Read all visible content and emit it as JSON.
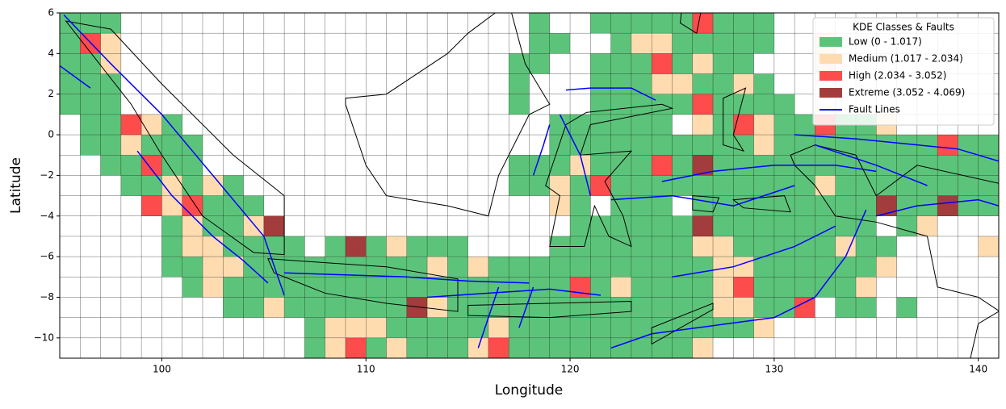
{
  "chart_data": {
    "type": "grid-map",
    "xlabel": "Longitude",
    "ylabel": "Latitude",
    "xlim": [
      95,
      141
    ],
    "ylim": [
      -11,
      6
    ],
    "xticks": [
      100,
      110,
      120,
      130,
      140
    ],
    "yticks": [
      {
        "value": -10,
        "label": "−10"
      },
      {
        "value": -8,
        "label": "−8"
      },
      {
        "value": -6,
        "label": "−6"
      },
      {
        "value": -4,
        "label": "−4"
      },
      {
        "value": -2,
        "label": "−2"
      },
      0,
      2,
      4,
      6
    ],
    "legend_title": "KDE Classes & Faults",
    "legend": "upper right",
    "classes": [
      {
        "name": "Low (0 - 1.017)",
        "color": "#5cc47a",
        "runs": [
          [
            95,
            98,
            5
          ],
          [
            118,
            119,
            5
          ],
          [
            121,
            126,
            5
          ],
          [
            127,
            130,
            5
          ],
          [
            95,
            96,
            4
          ],
          [
            118,
            120,
            4
          ],
          [
            122,
            123,
            4
          ],
          [
            125,
            130,
            4
          ],
          [
            95,
            97,
            3
          ],
          [
            117,
            119,
            3
          ],
          [
            121,
            124,
            3
          ],
          [
            125,
            126,
            3
          ],
          [
            127,
            129,
            3
          ],
          [
            95,
            98,
            2
          ],
          [
            117,
            118,
            2
          ],
          [
            121,
            124,
            2
          ],
          [
            126,
            128,
            2
          ],
          [
            129,
            130,
            2
          ],
          [
            95,
            98,
            1
          ],
          [
            117,
            118,
            1
          ],
          [
            121,
            126,
            1
          ],
          [
            127,
            131,
            1
          ],
          [
            96,
            98,
            0
          ],
          [
            100,
            101,
            0
          ],
          [
            119,
            125,
            0
          ],
          [
            127,
            128,
            0
          ],
          [
            130,
            132,
            0
          ],
          [
            133,
            135,
            0
          ],
          [
            96,
            98,
            -1
          ],
          [
            99,
            102,
            -1
          ],
          [
            119,
            129,
            -1
          ],
          [
            130,
            138,
            -1
          ],
          [
            139,
            141,
            -1
          ],
          [
            97,
            99,
            -2
          ],
          [
            100,
            102,
            -2
          ],
          [
            117,
            120,
            -2
          ],
          [
            121,
            124,
            -2
          ],
          [
            125,
            126,
            -2
          ],
          [
            127,
            141,
            -2
          ],
          [
            98,
            100,
            -3
          ],
          [
            101,
            102,
            -3
          ],
          [
            103,
            104,
            -3
          ],
          [
            117,
            119,
            -3
          ],
          [
            120,
            121,
            -3
          ],
          [
            122,
            132,
            -3
          ],
          [
            133,
            141,
            -3
          ],
          [
            102,
            105,
            -4
          ],
          [
            120,
            121,
            -4
          ],
          [
            122,
            125,
            -4
          ],
          [
            126,
            135,
            -4
          ],
          [
            136,
            138,
            -4
          ],
          [
            139,
            141,
            -4
          ],
          [
            100,
            101,
            -5
          ],
          [
            102,
            104,
            -5
          ],
          [
            120,
            126,
            -5
          ],
          [
            127,
            135,
            -5
          ],
          [
            136,
            137,
            -5
          ],
          [
            100,
            101,
            -6
          ],
          [
            103,
            107,
            -6
          ],
          [
            108,
            109,
            -6
          ],
          [
            110,
            111,
            -6
          ],
          [
            112,
            115,
            -6
          ],
          [
            119,
            126,
            -6
          ],
          [
            128,
            133,
            -6
          ],
          [
            134,
            136,
            -6
          ],
          [
            100,
            102,
            -7
          ],
          [
            104,
            113,
            -7
          ],
          [
            114,
            115,
            -7
          ],
          [
            116,
            127,
            -7
          ],
          [
            129,
            135,
            -7
          ],
          [
            101,
            102,
            -8
          ],
          [
            103,
            120,
            -8
          ],
          [
            121,
            122,
            -8
          ],
          [
            123,
            127,
            -8
          ],
          [
            129,
            134,
            -8
          ],
          [
            103,
            105,
            -9
          ],
          [
            106,
            112,
            -9
          ],
          [
            114,
            127,
            -9
          ],
          [
            129,
            131,
            -9
          ],
          [
            133,
            135,
            -9
          ],
          [
            136,
            137,
            -9
          ],
          [
            107,
            108,
            -10
          ],
          [
            111,
            116,
            -10
          ],
          [
            117,
            129,
            -10
          ],
          [
            107,
            108,
            -11
          ],
          [
            110,
            111,
            -11
          ],
          [
            112,
            115,
            -11
          ],
          [
            117,
            126,
            -11
          ]
        ]
      },
      {
        "name": "Medium (1.017 - 2.034)",
        "color": "#fedcb0",
        "runs": [
          [
            97,
            98,
            4
          ],
          [
            123,
            125,
            4
          ],
          [
            132,
            133,
            4
          ],
          [
            97,
            98,
            3
          ],
          [
            126,
            127,
            3
          ],
          [
            132,
            133,
            3
          ],
          [
            124,
            126,
            2
          ],
          [
            128,
            129,
            2
          ],
          [
            99,
            100,
            0
          ],
          [
            126,
            127,
            0
          ],
          [
            129,
            130,
            0
          ],
          [
            135,
            136,
            0
          ],
          [
            98,
            99,
            -1
          ],
          [
            129,
            130,
            -1
          ],
          [
            120,
            121,
            -2
          ],
          [
            100,
            101,
            -3
          ],
          [
            102,
            103,
            -3
          ],
          [
            119,
            120,
            -3
          ],
          [
            132,
            133,
            -3
          ],
          [
            100,
            101,
            -4
          ],
          [
            119,
            120,
            -4
          ],
          [
            101,
            102,
            -5
          ],
          [
            104,
            105,
            -5
          ],
          [
            137,
            138,
            -5
          ],
          [
            101,
            103,
            -6
          ],
          [
            111,
            112,
            -6
          ],
          [
            126,
            128,
            -6
          ],
          [
            133,
            134,
            -6
          ],
          [
            140,
            141,
            -6
          ],
          [
            102,
            104,
            -7
          ],
          [
            113,
            114,
            -7
          ],
          [
            115,
            116,
            -7
          ],
          [
            127,
            129,
            -7
          ],
          [
            135,
            136,
            -7
          ],
          [
            102,
            103,
            -8
          ],
          [
            122,
            123,
            -8
          ],
          [
            127,
            128,
            -8
          ],
          [
            134,
            135,
            -8
          ],
          [
            105,
            106,
            -9
          ],
          [
            113,
            114,
            -9
          ],
          [
            127,
            129,
            -9
          ],
          [
            108,
            111,
            -10
          ],
          [
            116,
            117,
            -10
          ],
          [
            129,
            130,
            -10
          ],
          [
            108,
            109,
            -11
          ],
          [
            111,
            112,
            -11
          ],
          [
            115,
            116,
            -11
          ],
          [
            126,
            127,
            -11
          ]
        ]
      },
      {
        "name": "High (2.034 - 3.052)",
        "color": "#fc4c4c",
        "runs": [
          [
            126,
            127,
            5
          ],
          [
            96,
            97,
            4
          ],
          [
            124,
            125,
            3
          ],
          [
            126,
            127,
            1
          ],
          [
            98,
            99,
            0
          ],
          [
            128,
            129,
            0
          ],
          [
            132,
            133,
            0
          ],
          [
            138,
            139,
            -1
          ],
          [
            99,
            100,
            -2
          ],
          [
            124,
            125,
            -2
          ],
          [
            121,
            122,
            -3
          ],
          [
            99,
            100,
            -4
          ],
          [
            101,
            102,
            -4
          ],
          [
            120,
            121,
            -8
          ],
          [
            128,
            129,
            -8
          ],
          [
            131,
            132,
            -9
          ],
          [
            109,
            110,
            -11
          ],
          [
            116,
            117,
            -11
          ]
        ]
      },
      {
        "name": "Extreme (3.052 - 4.069)",
        "color": "#a33c3c",
        "runs": [
          [
            126,
            127,
            -2
          ],
          [
            135,
            136,
            -4
          ],
          [
            138,
            139,
            -4
          ],
          [
            105,
            106,
            -5
          ],
          [
            126,
            127,
            -5
          ],
          [
            109,
            110,
            -6
          ],
          [
            112,
            113,
            -9
          ]
        ]
      }
    ],
    "faults": {
      "name": "Fault Lines",
      "color": "#0000ff",
      "lines": [
        {
          "x": [
            95.2,
            97.5,
            100,
            102.5,
            105,
            106
          ],
          "y": [
            5.9,
            3.5,
            1,
            -2,
            -5,
            -7.9
          ]
        },
        {
          "x": [
            95,
            96.5
          ],
          "y": [
            3.4,
            2.3
          ]
        },
        {
          "x": [
            98.8,
            100.5,
            102.5,
            104,
            105.2
          ],
          "y": [
            -0.8,
            -3,
            -5,
            -6.2,
            -7.3
          ]
        },
        {
          "x": [
            106,
            109,
            112,
            115,
            118
          ],
          "y": [
            -6.8,
            -6.9,
            -7,
            -7.2,
            -7.3
          ]
        },
        {
          "x": [
            113,
            116,
            119,
            121.5
          ],
          "y": [
            -8,
            -7.8,
            -7.6,
            -7.9
          ]
        },
        {
          "x": [
            122,
            124,
            127,
            130,
            132,
            133.5,
            134.5
          ],
          "y": [
            -10.5,
            -9.8,
            -9.4,
            -9,
            -8,
            -6,
            -3.7
          ]
        },
        {
          "x": [
            115.5,
            116.5
          ],
          "y": [
            -10.5,
            -7.5
          ]
        },
        {
          "x": [
            117.5,
            118.2
          ],
          "y": [
            -9.5,
            -7.5
          ]
        },
        {
          "x": [
            119.8,
            121,
            123,
            124.2
          ],
          "y": [
            2.2,
            2.3,
            2.3,
            1.7
          ]
        },
        {
          "x": [
            119.5,
            120.5,
            121
          ],
          "y": [
            1,
            -1,
            -3
          ]
        },
        {
          "x": [
            118.2,
            118.7,
            119
          ],
          "y": [
            -2,
            -0.5,
            0.5
          ]
        },
        {
          "x": [
            124.5,
            127,
            130,
            133,
            135
          ],
          "y": [
            -2.3,
            -1.8,
            -1.5,
            -1.5,
            -1.8
          ]
        },
        {
          "x": [
            122,
            125,
            128,
            131
          ],
          "y": [
            -3.2,
            -3,
            -3.5,
            -2.5
          ]
        },
        {
          "x": [
            131,
            134,
            137,
            139,
            141
          ],
          "y": [
            0,
            -0.2,
            -0.5,
            -0.7,
            -1.3
          ]
        },
        {
          "x": [
            135,
            137,
            140,
            141
          ],
          "y": [
            -4,
            -3.5,
            -3.2,
            -3.5
          ]
        },
        {
          "x": [
            132,
            135,
            137.5
          ],
          "y": [
            -0.5,
            -1.5,
            -2.5
          ]
        },
        {
          "x": [
            125,
            128,
            131,
            133
          ],
          "y": [
            -7,
            -6.5,
            -5.5,
            -4.5
          ]
        }
      ]
    }
  }
}
